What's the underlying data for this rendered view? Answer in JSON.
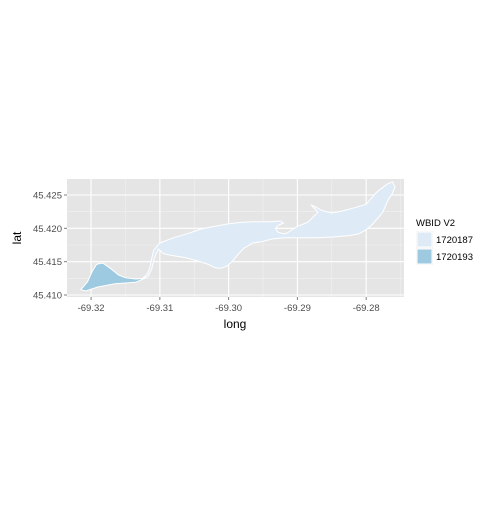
{
  "chart_data": {
    "type": "map",
    "xlabel": "long",
    "ylabel": "lat",
    "xlim": [
      -69.3235,
      -69.2745
    ],
    "ylim": [
      45.4097,
      45.4274
    ],
    "x_ticks": [
      -69.32,
      -69.31,
      -69.3,
      -69.29,
      -69.28
    ],
    "x_tick_labels": [
      "-69.32",
      "-69.31",
      "-69.30",
      "-69.29",
      "-69.28"
    ],
    "y_ticks": [
      45.41,
      45.415,
      45.42,
      45.425
    ],
    "y_tick_labels": [
      "45.410",
      "45.415",
      "45.420",
      "45.425"
    ],
    "grid": true,
    "legend": {
      "title": "WBID V2",
      "placement": "right",
      "entries": [
        {
          "label": "1720187",
          "color": "#deebf7"
        },
        {
          "label": "1720193",
          "color": "#9ecae1"
        }
      ]
    },
    "polygons": [
      {
        "id": "1720193",
        "fill": "#9ecae1",
        "points": [
          [
            -69.3215,
            45.4108
          ],
          [
            -69.3205,
            45.412
          ],
          [
            -69.3198,
            45.4136
          ],
          [
            -69.3192,
            45.4146
          ],
          [
            -69.3183,
            45.4148
          ],
          [
            -69.3172,
            45.414
          ],
          [
            -69.316,
            45.413
          ],
          [
            -69.315,
            45.4126
          ],
          [
            -69.3135,
            45.4124
          ],
          [
            -69.3122,
            45.4125
          ],
          [
            -69.3135,
            45.4119
          ],
          [
            -69.3165,
            45.4117
          ],
          [
            -69.319,
            45.4112
          ],
          [
            -69.3208,
            45.4106
          ]
        ]
      },
      {
        "id": "1720187",
        "fill": "#deebf7",
        "points": [
          [
            -69.3126,
            45.4124
          ],
          [
            -69.3118,
            45.4132
          ],
          [
            -69.3114,
            45.4143
          ],
          [
            -69.3112,
            45.4154
          ],
          [
            -69.3109,
            45.4167
          ],
          [
            -69.31,
            45.4178
          ],
          [
            -69.308,
            45.4186
          ],
          [
            -69.306,
            45.4192
          ],
          [
            -69.304,
            45.4199
          ],
          [
            -69.302,
            45.4203
          ],
          [
            -69.3,
            45.4207
          ],
          [
            -69.298,
            45.4209
          ],
          [
            -69.296,
            45.421
          ],
          [
            -69.294,
            45.421
          ],
          [
            -69.2925,
            45.4211
          ],
          [
            -69.292,
            45.4208
          ],
          [
            -69.2927,
            45.4205
          ],
          [
            -69.2932,
            45.42
          ],
          [
            -69.2928,
            45.4194
          ],
          [
            -69.292,
            45.4192
          ],
          [
            -69.2915,
            45.4193
          ],
          [
            -69.29,
            45.4203
          ],
          [
            -69.2885,
            45.4209
          ],
          [
            -69.287,
            45.4224
          ],
          [
            -69.288,
            45.4235
          ],
          [
            -69.2875,
            45.4233
          ],
          [
            -69.2865,
            45.4227
          ],
          [
            -69.285,
            45.4223
          ],
          [
            -69.2835,
            45.4226
          ],
          [
            -69.282,
            45.423
          ],
          [
            -69.28,
            45.4236
          ],
          [
            -69.2785,
            45.4254
          ],
          [
            -69.277,
            45.4266
          ],
          [
            -69.2762,
            45.427
          ],
          [
            -69.2758,
            45.4262
          ],
          [
            -69.2762,
            45.4252
          ],
          [
            -69.2768,
            45.4243
          ],
          [
            -69.2772,
            45.4233
          ],
          [
            -69.2776,
            45.4224
          ],
          [
            -69.2784,
            45.4214
          ],
          [
            -69.2792,
            45.4205
          ],
          [
            -69.28,
            45.4198
          ],
          [
            -69.281,
            45.4192
          ],
          [
            -69.2826,
            45.4189
          ],
          [
            -69.2848,
            45.4187
          ],
          [
            -69.287,
            45.4186
          ],
          [
            -69.2895,
            45.4186
          ],
          [
            -69.2918,
            45.4186
          ],
          [
            -69.2937,
            45.4184
          ],
          [
            -69.2952,
            45.418
          ],
          [
            -69.2965,
            45.4178
          ],
          [
            -69.2978,
            45.417
          ],
          [
            -69.2987,
            45.416
          ],
          [
            -69.2995,
            45.415
          ],
          [
            -69.3003,
            45.4143
          ],
          [
            -69.3012,
            45.414
          ],
          [
            -69.302,
            45.4141
          ],
          [
            -69.303,
            45.4146
          ],
          [
            -69.3045,
            45.4151
          ],
          [
            -69.3062,
            45.4156
          ],
          [
            -69.308,
            45.4159
          ],
          [
            -69.3095,
            45.4162
          ],
          [
            -69.3102,
            45.4169
          ],
          [
            -69.3105,
            45.4163
          ],
          [
            -69.3109,
            45.4152
          ],
          [
            -69.3112,
            45.4138
          ],
          [
            -69.3117,
            45.4128
          ]
        ]
      }
    ]
  }
}
